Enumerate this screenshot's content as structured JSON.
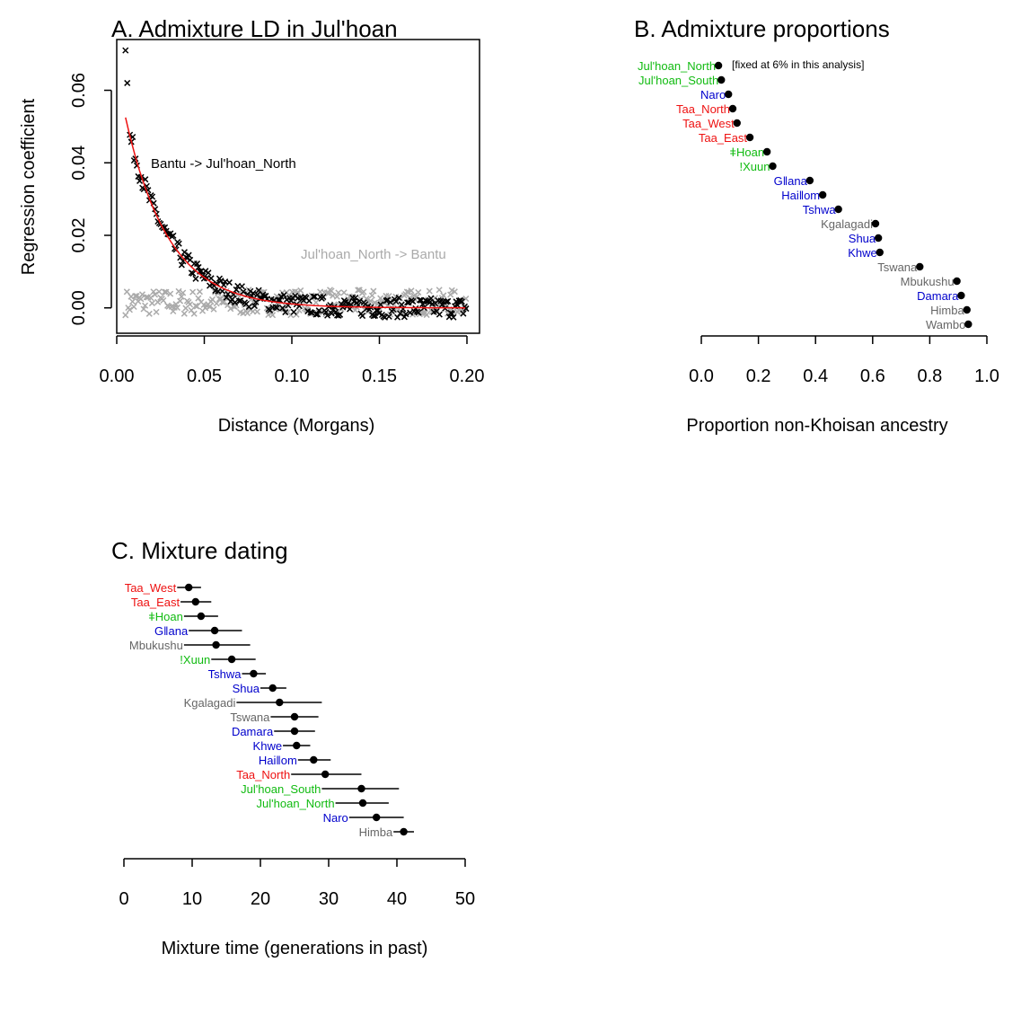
{
  "colors": {
    "green": "#11bb11",
    "blue": "#0000cc",
    "red": "#ee1111",
    "gray": "#666666",
    "black": "#000000",
    "point_gray": "#aaaaaa"
  },
  "chart_data": [
    {
      "id": "A",
      "type": "scatter",
      "title": "A. Admixture LD in Jul'hoan",
      "xlabel": "Distance (Morgans)",
      "ylabel": "Regression coefficient",
      "xlim": [
        0.0,
        0.2
      ],
      "ylim": [
        -0.007,
        0.074
      ],
      "x_ticks": [
        "0.00",
        "0.05",
        "0.10",
        "0.15",
        "0.20"
      ],
      "x_tick_values": [
        0.0,
        0.05,
        0.1,
        0.15,
        0.2
      ],
      "y_ticks": [
        "0.00",
        "0.02",
        "0.04",
        "0.06"
      ],
      "y_tick_values": [
        0.0,
        0.02,
        0.04,
        0.06
      ],
      "annotations": [
        "Bantu -> Jul'hoan_North",
        "Jul'hoan_North -> Bantu"
      ],
      "series": [
        {
          "name": "Bantu -> Jul'hoan_North",
          "marker": "x",
          "color": "black",
          "points_approx": [
            [
              0.005,
              0.071
            ],
            [
              0.006,
              0.062
            ],
            [
              0.008,
              0.047
            ],
            [
              0.01,
              0.045
            ],
            [
              0.015,
              0.033
            ],
            [
              0.02,
              0.028
            ],
            [
              0.025,
              0.024
            ],
            [
              0.03,
              0.019
            ],
            [
              0.04,
              0.015
            ],
            [
              0.05,
              0.012
            ],
            [
              0.06,
              0.009
            ],
            [
              0.08,
              0.006
            ],
            [
              0.1,
              0.003
            ],
            [
              0.12,
              0.002
            ],
            [
              0.14,
              0.0
            ],
            [
              0.16,
              0.001
            ],
            [
              0.18,
              0.002
            ],
            [
              0.2,
              0.001
            ]
          ]
        },
        {
          "name": "Jul'hoan_North -> Bantu",
          "marker": "x",
          "color": "gray",
          "points_approx": [
            [
              0.005,
              0.002
            ],
            [
              0.02,
              0.002
            ],
            [
              0.04,
              0.001
            ],
            [
              0.06,
              0.003
            ],
            [
              0.08,
              0.002
            ],
            [
              0.1,
              0.002
            ],
            [
              0.12,
              0.001
            ],
            [
              0.14,
              0.002
            ],
            [
              0.16,
              0.001
            ],
            [
              0.18,
              0.002
            ],
            [
              0.2,
              0.001
            ]
          ]
        },
        {
          "name": "fit",
          "type": "line",
          "color": "red",
          "model": "0.0525*exp(-x/0.025)",
          "x_range": [
            0.005,
            0.2
          ]
        }
      ]
    },
    {
      "id": "B",
      "type": "dot",
      "title": "B. Admixture proportions",
      "xlabel": "Proportion non-Khoisan ancestry",
      "xlim": [
        0.0,
        1.0
      ],
      "x_ticks": [
        "0.0",
        "0.2",
        "0.4",
        "0.6",
        "0.8",
        "1.0"
      ],
      "x_tick_values": [
        0.0,
        0.2,
        0.4,
        0.6,
        0.8,
        1.0
      ],
      "note": "[fixed at 6% in this analysis]",
      "rows": [
        {
          "label": "Jul'hoan_North",
          "value": 0.06,
          "color": "green"
        },
        {
          "label": "Jul'hoan_South",
          "value": 0.07,
          "color": "green"
        },
        {
          "label": "Naro",
          "value": 0.095,
          "color": "blue"
        },
        {
          "label": "Taa_North",
          "value": 0.11,
          "color": "red"
        },
        {
          "label": "Taa_West",
          "value": 0.125,
          "color": "red"
        },
        {
          "label": "Taa_East",
          "value": 0.17,
          "color": "red"
        },
        {
          "label": "ǂHoan",
          "value": 0.23,
          "color": "green"
        },
        {
          "label": "!Xuun",
          "value": 0.25,
          "color": "green"
        },
        {
          "label": "Gǁana",
          "value": 0.38,
          "color": "blue"
        },
        {
          "label": "Haiǁom",
          "value": 0.425,
          "color": "blue"
        },
        {
          "label": "Tshwa",
          "value": 0.48,
          "color": "blue"
        },
        {
          "label": "Kgalagadi",
          "value": 0.61,
          "color": "gray"
        },
        {
          "label": "Shua",
          "value": 0.62,
          "color": "blue"
        },
        {
          "label": "Khwe",
          "value": 0.625,
          "color": "blue"
        },
        {
          "label": "Tswana",
          "value": 0.765,
          "color": "gray"
        },
        {
          "label": "Mbukushu",
          "value": 0.895,
          "color": "gray"
        },
        {
          "label": "Damara",
          "value": 0.91,
          "color": "blue"
        },
        {
          "label": "Himba",
          "value": 0.93,
          "color": "gray"
        },
        {
          "label": "Wambo",
          "value": 0.935,
          "color": "gray"
        }
      ]
    },
    {
      "id": "C",
      "type": "dot_errorbar",
      "title": "C. Mixture dating",
      "xlabel": "Mixture time (generations in past)",
      "xlim": [
        0,
        50
      ],
      "x_ticks": [
        "0",
        "10",
        "20",
        "30",
        "40",
        "50"
      ],
      "x_tick_values": [
        0,
        10,
        20,
        30,
        40,
        50
      ],
      "rows": [
        {
          "label": "Taa_West",
          "value": 9.5,
          "low": 7.8,
          "high": 11.3,
          "color": "red"
        },
        {
          "label": "Taa_East",
          "value": 10.5,
          "low": 8.3,
          "high": 12.8,
          "color": "red"
        },
        {
          "label": "ǂHoan",
          "value": 11.3,
          "low": 8.8,
          "high": 13.8,
          "color": "green"
        },
        {
          "label": "Gǁana",
          "value": 13.3,
          "low": 9.5,
          "high": 17.3,
          "color": "blue"
        },
        {
          "label": "Mbukushu",
          "value": 13.5,
          "low": 8.8,
          "high": 18.5,
          "color": "gray"
        },
        {
          "label": "!Xuun",
          "value": 15.8,
          "low": 12.8,
          "high": 19.3,
          "color": "green"
        },
        {
          "label": "Tshwa",
          "value": 19.0,
          "low": 17.3,
          "high": 20.8,
          "color": "blue"
        },
        {
          "label": "Shua",
          "value": 21.8,
          "low": 20.0,
          "high": 23.8,
          "color": "blue"
        },
        {
          "label": "Kgalagadi",
          "value": 22.8,
          "low": 16.5,
          "high": 29.0,
          "color": "gray"
        },
        {
          "label": "Tswana",
          "value": 25.0,
          "low": 21.5,
          "high": 28.5,
          "color": "gray"
        },
        {
          "label": "Damara",
          "value": 25.0,
          "low": 22.0,
          "high": 28.0,
          "color": "blue"
        },
        {
          "label": "Khwe",
          "value": 25.3,
          "low": 23.3,
          "high": 27.3,
          "color": "blue"
        },
        {
          "label": "Haiǁom",
          "value": 27.8,
          "low": 25.5,
          "high": 30.3,
          "color": "blue"
        },
        {
          "label": "Taa_North",
          "value": 29.5,
          "low": 24.5,
          "high": 34.8,
          "color": "red"
        },
        {
          "label": "Jul'hoan_South",
          "value": 34.8,
          "low": 29.0,
          "high": 40.3,
          "color": "green"
        },
        {
          "label": "Jul'hoan_North",
          "value": 35.0,
          "low": 31.0,
          "high": 38.8,
          "color": "green"
        },
        {
          "label": "Naro",
          "value": 37.0,
          "low": 33.0,
          "high": 41.0,
          "color": "blue"
        },
        {
          "label": "Himba",
          "value": 41.0,
          "low": 39.5,
          "high": 42.5,
          "color": "gray"
        }
      ]
    }
  ]
}
